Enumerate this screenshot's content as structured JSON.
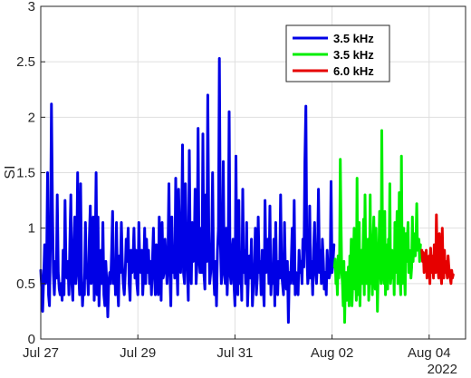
{
  "chart_data": {
    "type": "line",
    "title": "",
    "xlabel": "",
    "ylabel": "SI",
    "year_label": "2022",
    "x_unit": "days",
    "x_tick_labels": [
      "Jul 27",
      "Jul 29",
      "Jul 31",
      "Aug 02",
      "Aug 04"
    ],
    "x_ticks": [
      0,
      2,
      4,
      6,
      8
    ],
    "xlim": [
      0,
      8.75
    ],
    "ylim": [
      0,
      3
    ],
    "y_ticks": [
      0,
      0.5,
      1,
      1.5,
      2,
      2.5,
      3
    ],
    "y_tick_labels": [
      "0",
      "0.5",
      "1",
      "1.5",
      "2",
      "2.5",
      "3"
    ],
    "grid": true,
    "legend_position": "top-right",
    "series": [
      {
        "name": "3.5 kHz",
        "color": "#0000e6",
        "x_start": 0.0,
        "x_step": 0.02,
        "values": [
          0.62,
          0.45,
          0.25,
          0.55,
          0.85,
          0.5,
          0.6,
          1.5,
          0.4,
          0.3,
          0.9,
          2.12,
          1.2,
          0.6,
          0.4,
          0.7,
          0.55,
          1.3,
          0.6,
          0.45,
          0.4,
          0.5,
          0.35,
          0.8,
          0.4,
          1.25,
          0.6,
          0.55,
          0.7,
          0.4,
          0.9,
          1.3,
          0.5,
          0.35,
          0.8,
          1.1,
          0.5,
          0.7,
          1.5,
          0.6,
          0.4,
          1.4,
          0.6,
          0.3,
          0.5,
          0.4,
          1.05,
          0.55,
          0.6,
          0.4,
          0.9,
          1.2,
          0.5,
          0.6,
          1.1,
          0.35,
          0.7,
          1.5,
          0.4,
          1.1,
          0.3,
          0.6,
          0.8,
          0.5,
          1.05,
          0.4,
          0.3,
          0.7,
          0.5,
          0.2,
          0.5,
          0.6,
          0.5,
          0.8,
          1.15,
          0.5,
          0.7,
          0.4,
          1.05,
          0.5,
          0.3,
          0.75,
          0.6,
          1.05,
          0.7,
          0.5,
          0.4,
          0.6,
          0.9,
          0.7,
          1.0,
          0.5,
          0.35,
          0.8,
          0.6,
          0.7,
          1.0,
          0.55,
          0.8,
          0.5,
          0.4,
          1.05,
          0.7,
          0.6,
          0.8,
          0.4,
          0.6,
          1.0,
          0.5,
          0.9,
          0.6,
          0.8,
          0.5,
          0.7,
          0.4,
          0.7,
          1.0,
          0.6,
          0.4,
          0.85,
          0.5,
          0.4,
          1.1,
          0.7,
          0.35,
          1.05,
          0.55,
          0.6,
          0.9,
          0.7,
          0.5,
          0.75,
          1.4,
          0.6,
          0.3,
          1.1,
          0.6,
          0.8,
          0.55,
          1.45,
          0.7,
          0.4,
          1.35,
          0.9,
          0.6,
          0.9,
          1.75,
          0.6,
          0.5,
          1.4,
          0.9,
          0.6,
          0.35,
          1.7,
          0.7,
          0.5,
          1.05,
          0.7,
          0.8,
          1.35,
          0.5,
          0.7,
          1.9,
          0.8,
          0.6,
          1.0,
          0.6,
          1.85,
          0.6,
          0.45,
          1.3,
          0.7,
          2.2,
          1.0,
          0.5,
          0.6,
          0.8,
          1.5,
          0.6,
          0.4,
          0.7,
          0.3,
          0.8,
          1.0,
          2.53,
          0.9,
          0.5,
          0.7,
          1.6,
          0.6,
          0.5,
          1.0,
          0.4,
          0.7,
          2.05,
          0.6,
          0.5,
          0.8,
          0.9,
          0.5,
          0.3,
          1.65,
          0.6,
          0.4,
          1.25,
          0.5,
          0.7,
          0.35,
          1.35,
          0.6,
          0.8,
          0.5,
          1.05,
          0.3,
          0.6,
          0.75,
          0.55,
          0.9,
          0.3,
          0.5,
          0.6,
          1.0,
          0.4,
          0.55,
          1.1,
          0.6,
          0.7,
          0.4,
          0.8,
          0.5,
          0.3,
          1.25,
          0.6,
          0.7,
          0.9,
          0.5,
          1.2,
          0.4,
          0.65,
          0.5,
          0.9,
          0.3,
          1.05,
          0.5,
          0.4,
          0.7,
          0.55,
          1.3,
          0.6,
          0.5,
          0.4,
          1.05,
          0.6,
          0.45,
          0.7,
          0.15,
          0.6,
          0.5,
          0.7,
          1.0,
          0.5,
          1.25,
          0.4,
          0.6,
          0.5,
          0.4,
          0.8,
          0.6,
          0.7,
          0.5,
          0.9,
          0.65,
          1.6,
          2.1,
          0.8,
          0.5,
          0.6,
          1.2,
          0.55,
          0.7,
          0.4,
          0.8,
          1.05,
          0.6,
          0.5,
          0.7,
          1.35,
          0.6,
          0.8,
          0.5,
          0.9,
          0.7,
          0.45,
          0.6,
          0.4,
          0.8,
          0.6,
          0.55,
          0.6,
          1.42,
          0.6,
          0.7,
          0.85
        ]
      },
      {
        "name": "3.5 kHz",
        "color": "#00ee00",
        "x_start": 6.05,
        "x_step": 0.015,
        "values": [
          0.65,
          0.72,
          0.5,
          0.6,
          0.4,
          0.75,
          0.55,
          0.7,
          1.62,
          1.05,
          0.6,
          0.5,
          0.3,
          0.7,
          0.15,
          0.55,
          0.6,
          0.35,
          0.5,
          0.65,
          0.3,
          0.75,
          0.6,
          0.9,
          0.3,
          0.5,
          0.7,
          1.0,
          0.45,
          0.6,
          0.35,
          1.45,
          0.4,
          0.5,
          1.05,
          0.3,
          0.6,
          0.8,
          0.5,
          0.7,
          1.08,
          0.4,
          1.3,
          0.6,
          0.5,
          0.75,
          0.9,
          0.35,
          0.6,
          1.3,
          0.5,
          0.7,
          0.4,
          0.9,
          1.1,
          0.6,
          0.45,
          1.0,
          0.7,
          0.25,
          0.6,
          0.8,
          1.15,
          0.6,
          0.5,
          1.88,
          0.9,
          0.6,
          0.5,
          1.15,
          0.4,
          0.85,
          0.6,
          0.45,
          0.9,
          0.7,
          1.4,
          0.5,
          0.6,
          0.8,
          0.55,
          0.7,
          0.4,
          1.05,
          0.6,
          0.8,
          1.15,
          0.5,
          0.7,
          1.32,
          0.6,
          0.4,
          1.65,
          0.5,
          0.8,
          1.0,
          0.6,
          0.4,
          0.95,
          0.7,
          0.9,
          1.05,
          0.6,
          0.8,
          0.75,
          0.55,
          0.65,
          1.1,
          0.7,
          0.95,
          0.8,
          0.75,
          0.9,
          1.22,
          0.8,
          0.85,
          0.9,
          0.7,
          0.85
        ]
      },
      {
        "name": "6.0 kHz",
        "color": "#e60000",
        "x_start": 7.85,
        "x_step": 0.015,
        "values": [
          0.8,
          0.7,
          0.78,
          0.6,
          0.75,
          0.65,
          0.8,
          0.55,
          0.7,
          0.6,
          0.75,
          0.5,
          0.82,
          0.65,
          0.6,
          0.75,
          0.55,
          0.85,
          0.7,
          0.6,
          1.12,
          0.75,
          0.65,
          0.55,
          0.95,
          0.7,
          0.6,
          0.5,
          1.0,
          0.65,
          0.55,
          0.8,
          0.6,
          0.7,
          0.62,
          0.55,
          0.75,
          0.65,
          0.6,
          0.55,
          0.5,
          0.62,
          0.55,
          0.58
        ]
      }
    ]
  }
}
